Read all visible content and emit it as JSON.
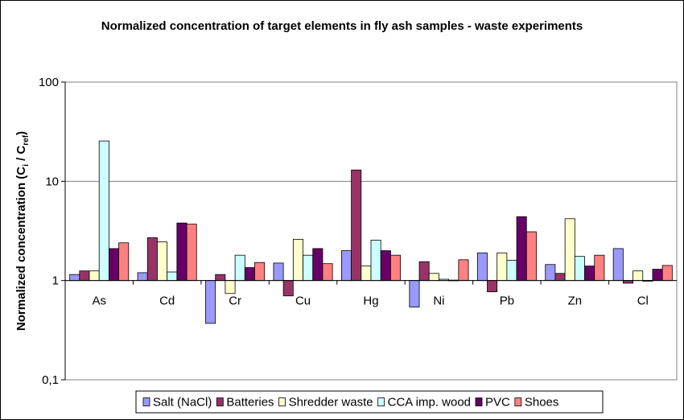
{
  "chart_data": {
    "type": "bar",
    "title": "Normalized concentration of target elements in fly ash samples - waste experiments",
    "ylabel_main": "Normalized concentration (C",
    "ylabel_sub_i": "i",
    "ylabel_mid": " / C",
    "ylabel_sub_ref": "ref",
    "ylabel_end": ")",
    "xlabel": "",
    "yscale": "log",
    "ylim": [
      0.1,
      100
    ],
    "baseline": 1,
    "yticks": [
      0.1,
      1,
      10,
      100
    ],
    "ytick_labels": [
      "0,1",
      "1",
      "10",
      "100"
    ],
    "grid": true,
    "legend_position": "bottom",
    "categories": [
      "As",
      "Cd",
      "Cr",
      "Cu",
      "Hg",
      "Ni",
      "Pb",
      "Zn",
      "Cl"
    ],
    "series": [
      {
        "name": "Salt (NaCl)",
        "color": "#9999ff",
        "values": [
          1.15,
          1.2,
          0.37,
          1.5,
          2.0,
          0.54,
          1.9,
          1.45,
          2.1
        ]
      },
      {
        "name": "Batteries",
        "color": "#993366",
        "values": [
          1.25,
          2.7,
          1.15,
          0.7,
          13.0,
          1.55,
          0.77,
          1.18,
          0.94
        ]
      },
      {
        "name": "Shredder waste",
        "color": "#ffffcc",
        "values": [
          1.25,
          2.45,
          0.74,
          2.6,
          1.4,
          1.18,
          1.9,
          4.2,
          1.25
        ]
      },
      {
        "name": "CCA imp. wood",
        "color": "#ccffff",
        "values": [
          25.5,
          1.22,
          1.8,
          1.8,
          2.55,
          1.03,
          1.6,
          1.75,
          0.99
        ]
      },
      {
        "name": "PVC",
        "color": "#660066",
        "values": [
          2.1,
          3.8,
          1.35,
          2.1,
          2.0,
          1.01,
          4.4,
          1.4,
          1.3
        ]
      },
      {
        "name": "Shoes",
        "color": "#ff8080",
        "values": [
          2.4,
          3.7,
          1.52,
          1.48,
          1.8,
          1.62,
          3.1,
          1.8,
          1.42
        ]
      }
    ]
  }
}
